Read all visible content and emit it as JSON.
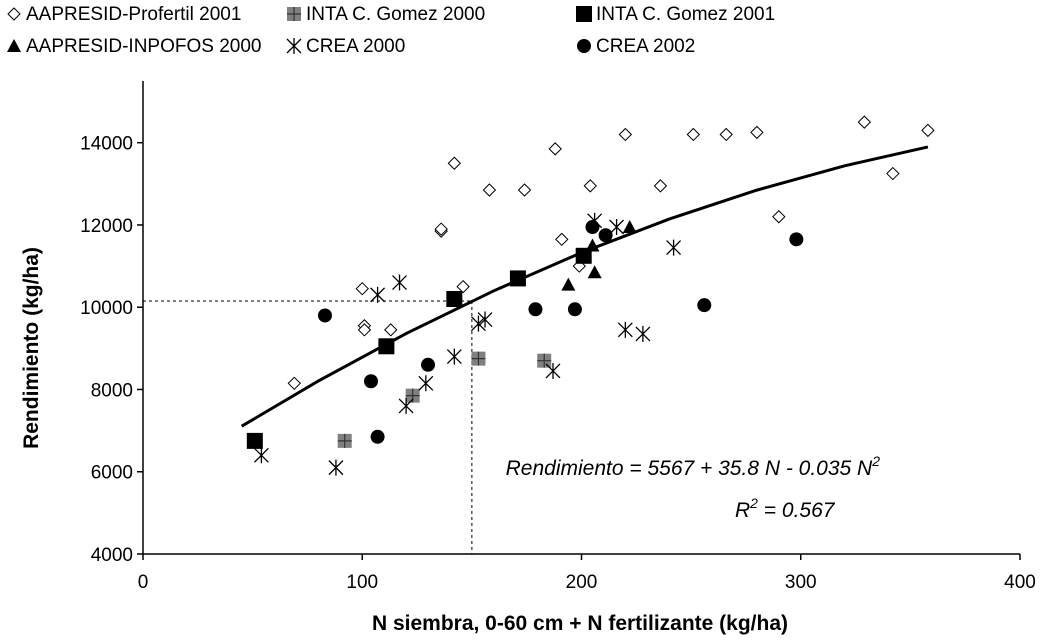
{
  "chart_data": {
    "type": "scatter",
    "xlabel": "N siembra, 0-60 cm + N fertilizante (kg/ha)",
    "ylabel": "Rendimiento (kg/ha)",
    "xlim": [
      0,
      400
    ],
    "xticks": [
      0,
      100,
      200,
      300,
      400
    ],
    "ylim": [
      4000,
      15500
    ],
    "yticks": [
      4000,
      6000,
      8000,
      10000,
      12000,
      14000
    ],
    "series": [
      {
        "name": "AAPRESID-Profertil 2001",
        "marker": "diamond",
        "color": "#000000",
        "x": [
          69,
          100,
          101,
          101,
          113,
          136,
          136,
          142,
          146,
          158,
          174,
          188,
          191,
          199,
          204,
          220,
          236,
          251,
          266,
          280,
          290,
          329,
          342,
          358
        ],
        "values": [
          8150,
          10450,
          9550,
          9450,
          9450,
          11850,
          11900,
          13500,
          10500,
          12850,
          12850,
          13850,
          11650,
          11000,
          12950,
          14200,
          12950,
          14200,
          14200,
          14250,
          12200,
          14500,
          13250,
          14300
        ]
      },
      {
        "name": "INTA C. Gomez 2000",
        "marker": "plus-square",
        "color": "#808080",
        "x": [
          92,
          123,
          153,
          183
        ],
        "values": [
          6750,
          7850,
          8750,
          8700
        ]
      },
      {
        "name": "INTA C. Gomez 2001",
        "marker": "square",
        "color": "#000000",
        "x": [
          51,
          111,
          142,
          171,
          201
        ],
        "values": [
          6750,
          9050,
          10200,
          10700,
          11250
        ]
      },
      {
        "name": "AAPRESID-INPOFOS 2000",
        "marker": "triangle",
        "color": "#000000",
        "x": [
          194,
          205,
          206,
          222
        ],
        "values": [
          10550,
          11500,
          10850,
          11950
        ]
      },
      {
        "name": "CREA 2000",
        "marker": "star",
        "color": "#000000",
        "x": [
          54,
          88,
          107,
          117,
          120,
          129,
          142,
          153,
          156,
          187,
          206,
          216,
          220,
          228,
          242
        ],
        "values": [
          6400,
          6100,
          10300,
          10600,
          7600,
          8150,
          8800,
          9600,
          9700,
          8450,
          12100,
          11950,
          9450,
          9350,
          11450
        ]
      },
      {
        "name": "CREA 2002",
        "marker": "circle",
        "color": "#000000",
        "x": [
          83,
          104,
          107,
          130,
          179,
          197,
          205,
          211,
          256,
          298
        ],
        "values": [
          9800,
          8200,
          6850,
          8600,
          9950,
          9950,
          11950,
          11750,
          10050,
          11650
        ]
      }
    ],
    "trendline": {
      "x": [
        45,
        80,
        120,
        160,
        200,
        240,
        280,
        320,
        358
      ],
      "values": [
        7107,
        8207,
        9359,
        10399,
        11327,
        12143,
        12847,
        13439,
        13897
      ]
    },
    "reference": {
      "x": 150,
      "y": 10150
    },
    "equation": {
      "text": "Rendimiento = 5567 + 35.8 N - 0.035 N",
      "exponent": "2"
    },
    "r2": {
      "text": "R",
      "exponent": "2",
      "rest": " = 0.567"
    }
  }
}
